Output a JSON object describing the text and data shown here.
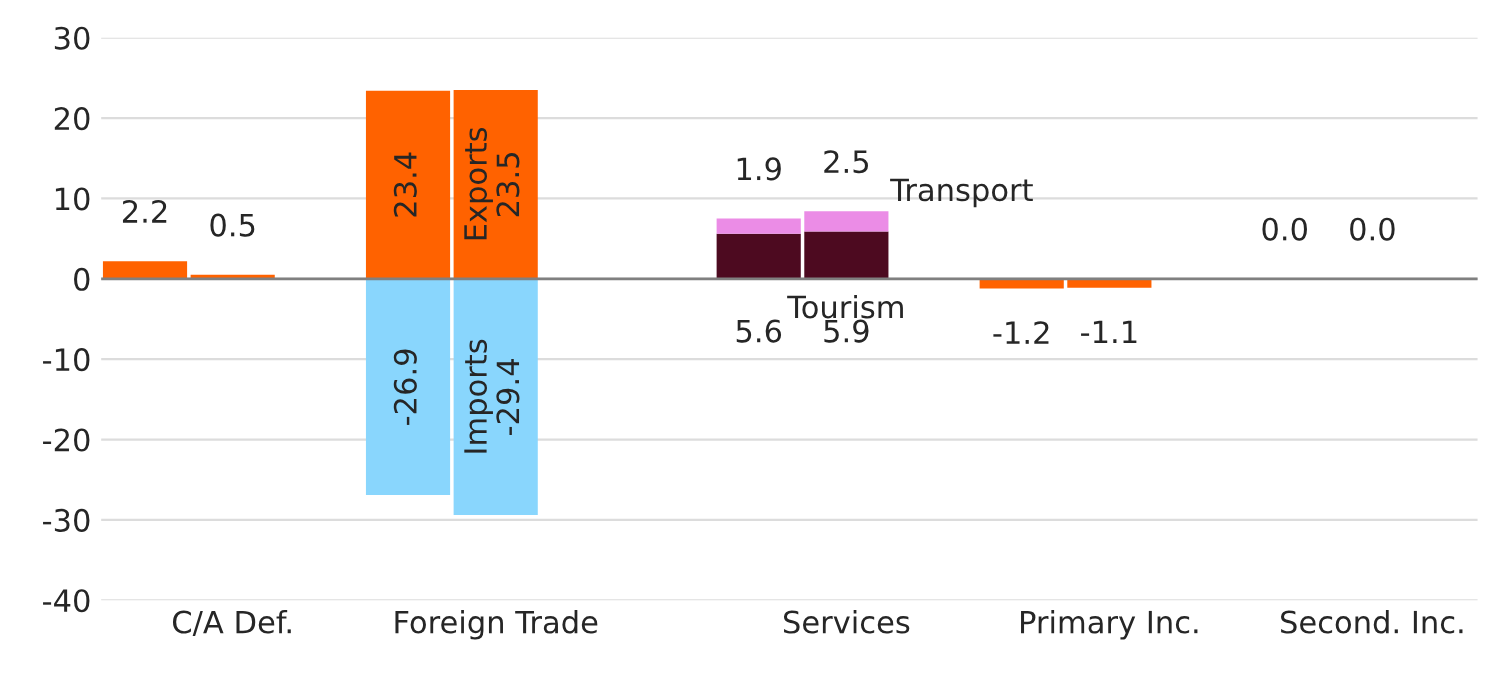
{
  "chart_data": {
    "type": "bar",
    "stacked": true,
    "categories": [
      null,
      "C/A Def.",
      null,
      null,
      "Foreign Trade",
      null,
      null,
      null,
      "Services",
      null,
      null,
      "Primary Inc.",
      null,
      null,
      "Second. Inc."
    ],
    "series": [
      {
        "color": "#ff6200",
        "values": [
          2.2,
          0.5,
          null,
          null,
          null,
          null,
          null,
          null,
          null,
          null,
          -1.2,
          -1.1,
          null,
          0.0,
          0.0
        ],
        "value_labels": [
          "2.2",
          "0.5",
          null,
          null,
          null,
          null,
          null,
          null,
          null,
          null,
          "-1.2",
          "-1.1",
          null,
          "0.0",
          "0.0"
        ]
      },
      {
        "name": "Exports",
        "color": "#ff6200",
        "values": [
          null,
          null,
          null,
          23.4,
          23.5,
          null,
          null,
          null,
          null,
          null,
          null,
          null,
          null,
          null,
          null
        ],
        "value_labels": [
          null,
          null,
          null,
          "23.4",
          "23.5",
          null,
          null,
          null,
          null,
          null,
          null,
          null,
          null,
          null,
          null
        ]
      },
      {
        "name": "Imports",
        "color": "#89d6fd",
        "values": [
          null,
          null,
          null,
          -26.9,
          -29.4,
          null,
          null,
          null,
          null,
          null,
          null,
          null,
          null,
          null,
          null
        ],
        "value_labels": [
          null,
          null,
          null,
          "-26.9",
          "-29.4",
          null,
          null,
          null,
          null,
          null,
          null,
          null,
          null,
          null,
          null
        ]
      },
      {
        "name": "Tourism",
        "color": "#4d0a20",
        "values": [
          null,
          null,
          null,
          null,
          null,
          null,
          null,
          5.6,
          5.9,
          null,
          null,
          null,
          null,
          null,
          null
        ],
        "value_labels": [
          null,
          null,
          null,
          null,
          null,
          null,
          null,
          "5.6",
          "5.9",
          null,
          null,
          null,
          null,
          null,
          null
        ]
      },
      {
        "name": "Transport",
        "color": "#eb8ce6",
        "values": [
          null,
          null,
          null,
          null,
          null,
          null,
          null,
          1.9,
          2.5,
          null,
          null,
          null,
          null,
          null,
          null
        ],
        "value_labels": [
          null,
          null,
          null,
          null,
          null,
          null,
          null,
          "1.9",
          "2.5",
          null,
          null,
          null,
          null,
          null,
          null
        ]
      }
    ],
    "ylim": [
      -40,
      30
    ],
    "yticks": [
      -40,
      -30,
      -20,
      -10,
      0,
      10,
      20,
      30
    ],
    "grid": "y",
    "legend": false,
    "ref_lines": [
      {
        "axis": "y",
        "value": 0,
        "color": "#808080"
      }
    ]
  }
}
